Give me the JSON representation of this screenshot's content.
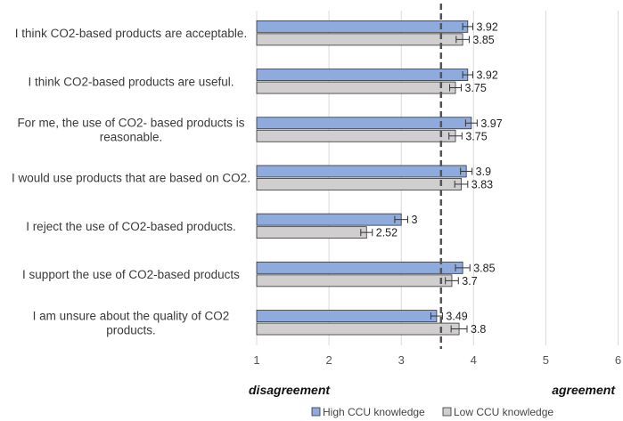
{
  "chart_data": {
    "type": "bar",
    "orientation": "horizontal",
    "categories": [
      [
        "I think CO2-based products are acceptable."
      ],
      [
        "I think CO2-based products are useful."
      ],
      [
        "For me, the use of CO2- based products is",
        "reasonable."
      ],
      [
        "I would use products that are based on CO2."
      ],
      [
        "I reject the use of CO2-based products."
      ],
      [
        "I support the use of CO2-based products"
      ],
      [
        "I am unsure about the quality of CO2",
        "products."
      ]
    ],
    "series": [
      {
        "name": "High CCU knowledge",
        "color": "#8faadc",
        "values": [
          3.92,
          3.92,
          3.97,
          3.9,
          3,
          3.85,
          3.49
        ],
        "errors": [
          0.07,
          0.07,
          0.08,
          0.08,
          0.09,
          0.1,
          0.08
        ]
      },
      {
        "name": "Low CCU knowledge",
        "color": "#d0cece",
        "values": [
          3.85,
          3.75,
          3.75,
          3.83,
          2.52,
          3.7,
          3.8
        ],
        "errors": [
          0.09,
          0.08,
          0.09,
          0.09,
          0.08,
          0.09,
          0.11
        ]
      }
    ],
    "value_labels": {
      "High CCU knowledge": [
        "3.92",
        "3.92",
        "3.97",
        "3.9",
        "3",
        "3.85",
        "3.49"
      ],
      "Low CCU knowledge": [
        "3.85",
        "3.75",
        "3.75",
        "3.83",
        "2.52",
        "3.7",
        "3.8"
      ]
    },
    "xlim": [
      1,
      6
    ],
    "xticks": [
      "1",
      "2",
      "3",
      "4",
      "5",
      "6"
    ],
    "reference_line": 3.55,
    "scale_labels": {
      "low": "disagreement",
      "high": "agreement"
    },
    "legend_position": "bottom-center",
    "grid": "vertical"
  }
}
